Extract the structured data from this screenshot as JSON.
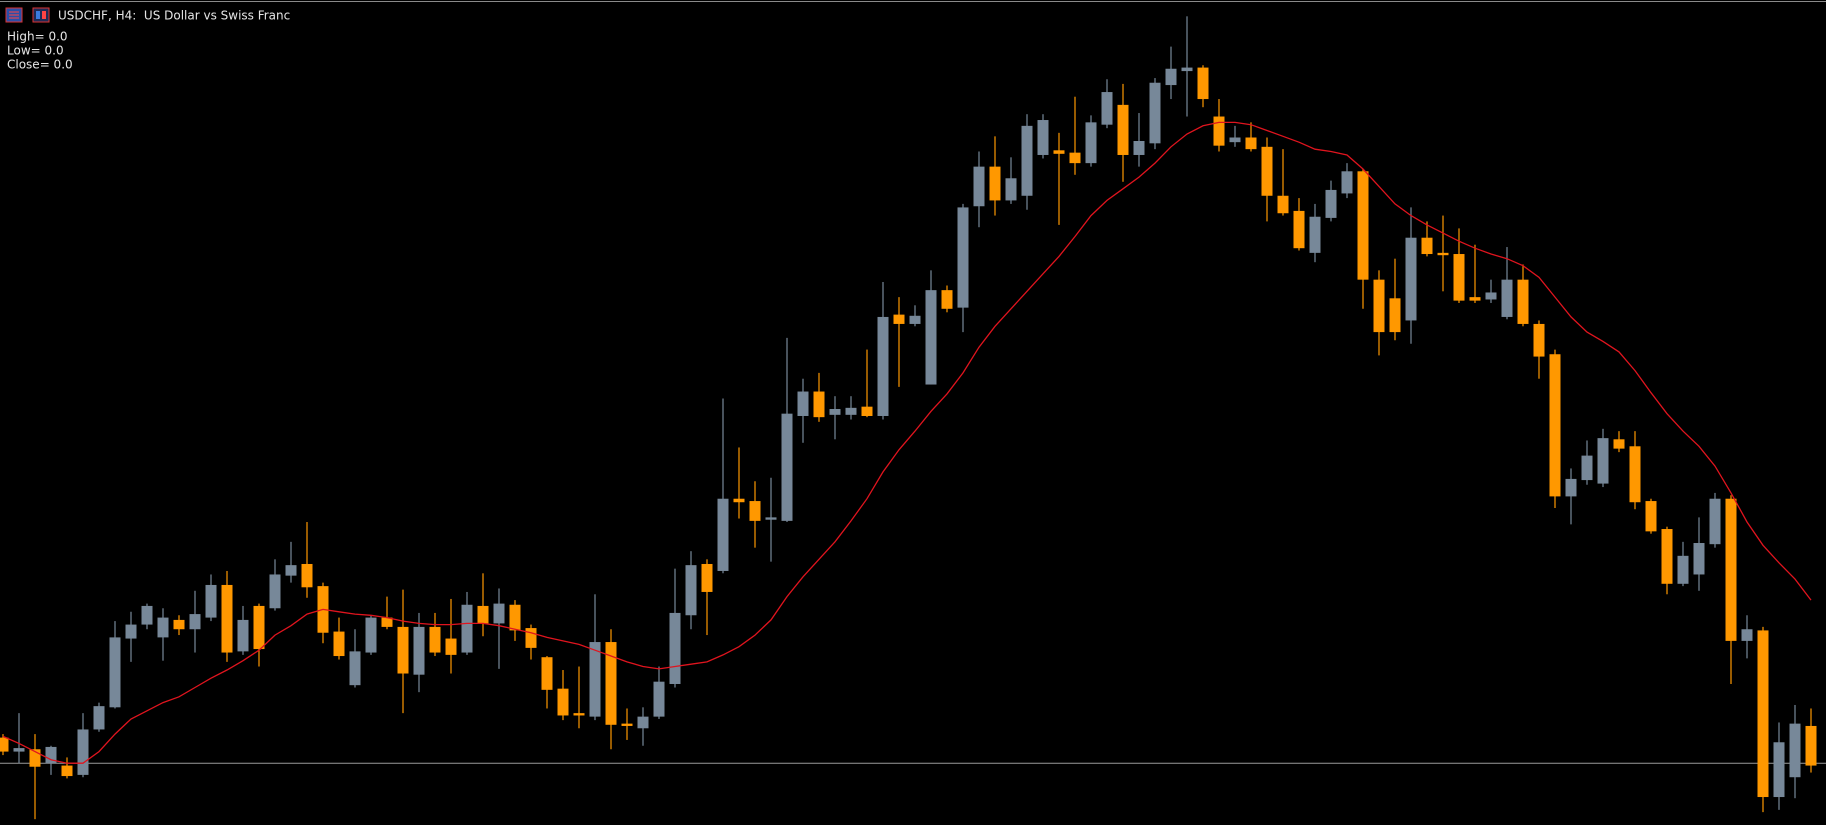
{
  "chart_data": {
    "type": "candlestick",
    "title": "USDCHF, H4:  US Dollar vs Swiss Franc",
    "info": [
      "High= 0.0",
      "Low= 0.0",
      "Close= 0.0"
    ],
    "ylim": [
      0,
      708
    ],
    "up_color": "#778899",
    "down_color": "#ff9800",
    "ma_color": "#e0141e",
    "price_line_color": "#9a9a9a",
    "price_line": 53,
    "open": [
      75,
      63,
      65,
      53,
      51,
      43,
      82,
      101,
      160,
      172,
      161,
      176,
      168,
      178,
      206,
      149,
      188,
      186,
      214,
      224,
      205,
      166,
      120,
      148,
      178,
      170,
      129,
      170,
      160,
      148,
      188,
      173,
      189,
      169,
      144,
      117,
      96,
      93,
      157,
      87,
      83,
      93,
      121,
      180,
      224,
      218,
      280,
      278,
      262,
      261,
      351,
      372,
      352,
      352,
      359,
      351,
      438,
      430,
      378,
      459,
      444,
      531,
      565,
      536,
      540,
      575,
      579,
      577,
      568,
      601,
      618,
      575,
      585,
      635,
      647,
      650,
      608,
      586,
      590,
      582,
      540,
      527,
      491,
      521,
      542,
      561,
      468,
      452,
      433,
      504,
      491,
      490,
      453,
      451,
      436,
      468,
      430,
      404,
      282,
      296,
      293,
      331,
      325,
      278,
      254,
      207,
      215,
      241,
      280,
      158,
      167,
      24,
      41,
      85
    ],
    "high": [
      78,
      96,
      78,
      68,
      58,
      96,
      105,
      175,
      183,
      190,
      186,
      180,
      201,
      215,
      218,
      188,
      190,
      228,
      243,
      260,
      208,
      178,
      168,
      180,
      196,
      202,
      182,
      182,
      194,
      200,
      216,
      203,
      193,
      172,
      145,
      133,
      136,
      198,
      168,
      100,
      101,
      136,
      220,
      235,
      228,
      366,
      324,
      295,
      298,
      418,
      383,
      388,
      368,
      368,
      408,
      466,
      453,
      446,
      476,
      463,
      533,
      578,
      591,
      573,
      610,
      610,
      594,
      625,
      609,
      640,
      636,
      611,
      641,
      668,
      694,
      652,
      623,
      600,
      603,
      590,
      580,
      538,
      533,
      553,
      568,
      563,
      476,
      486,
      530,
      518,
      523,
      512,
      498,
      468,
      496,
      481,
      433,
      408,
      306,
      330,
      340,
      338,
      338,
      280,
      256,
      243,
      264,
      285,
      283,
      180,
      170,
      88,
      103,
      100
    ],
    "low": [
      60,
      53,
      5,
      43,
      40,
      41,
      80,
      100,
      140,
      168,
      141,
      163,
      148,
      175,
      140,
      146,
      136,
      184,
      208,
      195,
      156,
      142,
      118,
      146,
      168,
      96,
      114,
      145,
      130,
      146,
      162,
      134,
      158,
      142,
      100,
      90,
      83,
      90,
      65,
      73,
      68,
      91,
      118,
      168,
      163,
      216,
      263,
      238,
      226,
      260,
      328,
      346,
      331,
      348,
      350,
      348,
      376,
      428,
      378,
      440,
      423,
      513,
      523,
      533,
      528,
      572,
      515,
      558,
      565,
      598,
      552,
      565,
      580,
      623,
      608,
      616,
      578,
      582,
      578,
      518,
      523,
      493,
      483,
      518,
      538,
      443,
      403,
      416,
      413,
      488,
      458,
      448,
      448,
      448,
      434,
      428,
      383,
      272,
      258,
      292,
      290,
      320,
      271,
      250,
      198,
      205,
      201,
      238,
      121,
      143,
      11,
      13,
      23,
      45
    ],
    "close": [
      63,
      66,
      50,
      67,
      42,
      82,
      102,
      161,
      172,
      188,
      178,
      168,
      181,
      206,
      148,
      176,
      151,
      215,
      223,
      204,
      165,
      145,
      149,
      178,
      170,
      130,
      170,
      148,
      146,
      189,
      173,
      190,
      167,
      152,
      116,
      94,
      94,
      157,
      86,
      85,
      93,
      123,
      182,
      223,
      200,
      280,
      277,
      261,
      264,
      353,
      372,
      350,
      357,
      358,
      351,
      436,
      430,
      437,
      459,
      443,
      530,
      565,
      536,
      555,
      600,
      605,
      576,
      568,
      603,
      629,
      575,
      587,
      637,
      649,
      650,
      623,
      583,
      590,
      580,
      540,
      525,
      495,
      522,
      545,
      561,
      468,
      423,
      423,
      504,
      490,
      489,
      450,
      450,
      457,
      468,
      430,
      402,
      282,
      297,
      317,
      332,
      323,
      277,
      252,
      207,
      231,
      242,
      280,
      158,
      168,
      24,
      71,
      87,
      51
    ],
    "ma": [
      76,
      70,
      63,
      56,
      53,
      53,
      63,
      78,
      91,
      98,
      105,
      110,
      118,
      126,
      133,
      141,
      150,
      163,
      171,
      181,
      185,
      183,
      181,
      180,
      178,
      175,
      173,
      172,
      172,
      173,
      173,
      171,
      168,
      165,
      161,
      158,
      155,
      150,
      145,
      140,
      136,
      134,
      136,
      138,
      140,
      146,
      153,
      163,
      176,
      196,
      213,
      228,
      243,
      261,
      280,
      303,
      322,
      338,
      355,
      370,
      388,
      410,
      428,
      443,
      458,
      473,
      488,
      505,
      523,
      536,
      546,
      556,
      568,
      582,
      593,
      600,
      603,
      603,
      601,
      596,
      591,
      586,
      580,
      578,
      575,
      563,
      548,
      533,
      523,
      515,
      508,
      501,
      495,
      490,
      486,
      480,
      470,
      453,
      436,
      423,
      415,
      406,
      390,
      371,
      353,
      338,
      325,
      308,
      285,
      260,
      240,
      225,
      211,
      193
    ]
  }
}
